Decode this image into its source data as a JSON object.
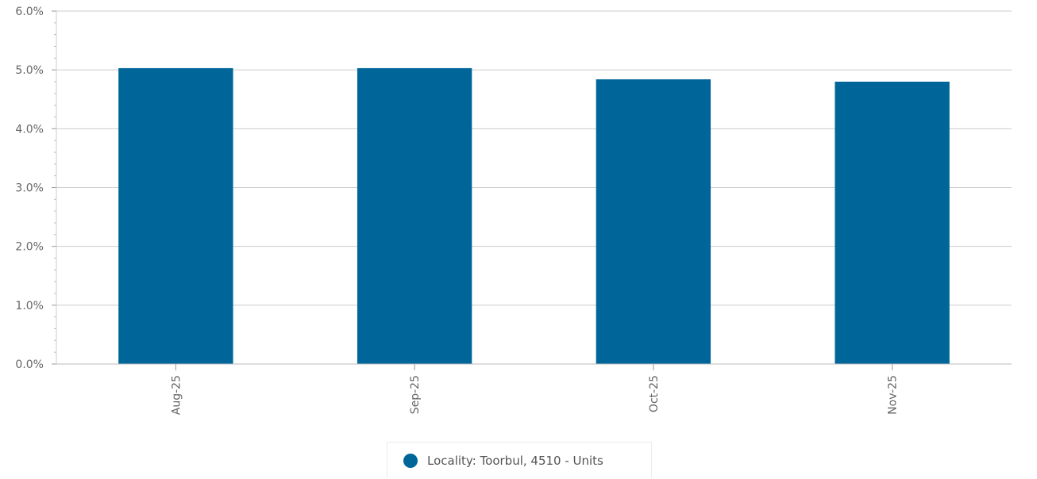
{
  "chart_data": {
    "type": "bar",
    "title": "",
    "xlabel": "",
    "ylabel": "",
    "categories": [
      "Aug-25",
      "Sep-25",
      "Oct-25",
      "Nov-25"
    ],
    "series": [
      {
        "name": "Locality: Toorbul, 4510 - Units",
        "values": [
          5.03,
          5.03,
          4.84,
          4.8
        ],
        "color": "#006699"
      }
    ],
    "ylim": [
      0,
      6
    ],
    "yticks": [
      0,
      1,
      2,
      3,
      4,
      5,
      6
    ],
    "ytick_labels": [
      "0.0%",
      "1.0%",
      "2.0%",
      "3.0%",
      "4.0%",
      "5.0%",
      "6.0%"
    ],
    "grid": true,
    "legend_position": "bottom-center"
  }
}
